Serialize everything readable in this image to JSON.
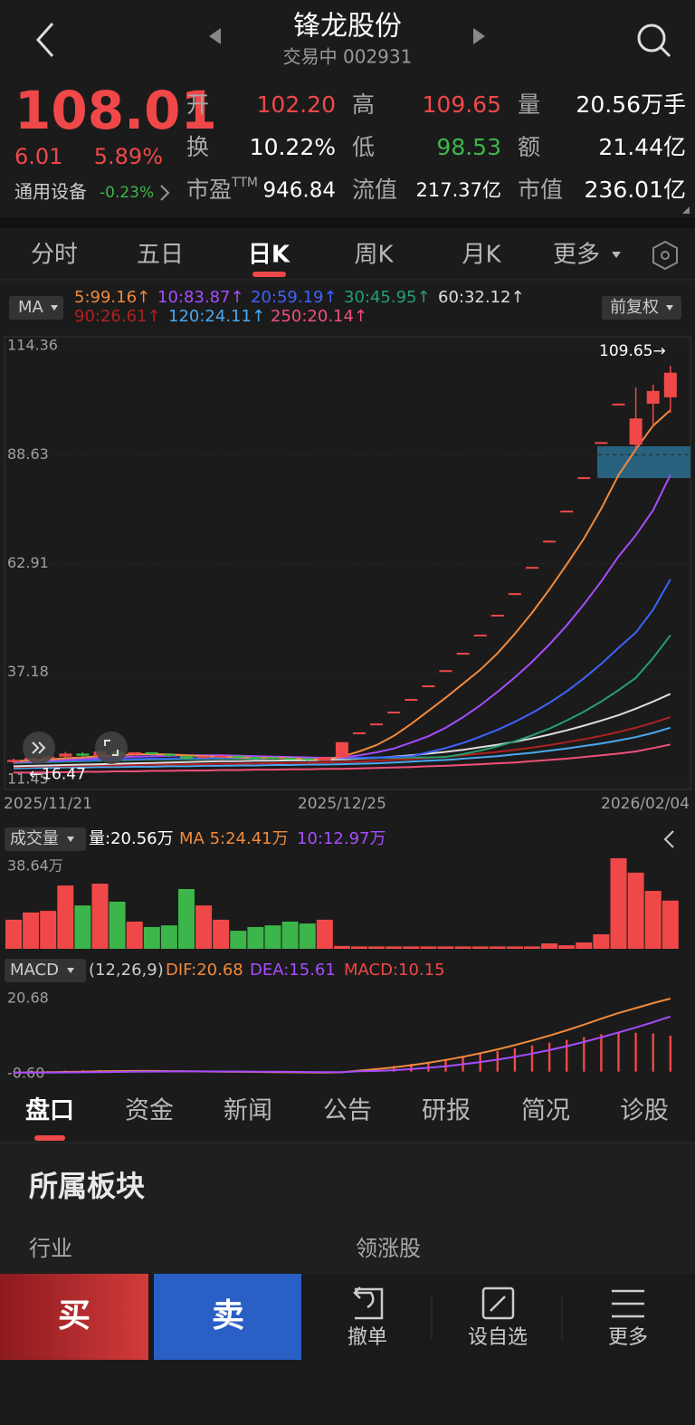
{
  "header": {
    "title": "锋龙股份",
    "status": "交易中 002931"
  },
  "quote": {
    "price": "108.01",
    "change": "6.01",
    "change_pct": "5.89%",
    "rows": [
      [
        {
          "label": "开",
          "value": "102.20"
        },
        {
          "label": "高",
          "value": "109.65"
        },
        {
          "label": "量",
          "value": "20.56万手"
        }
      ],
      [
        {
          "label": "换",
          "value": "10.22%"
        },
        {
          "label": "低",
          "value": "98.53"
        },
        {
          "label": "额",
          "value": "21.44亿"
        }
      ],
      [
        {
          "label": "市盈",
          "label_sup": "TTM",
          "value": "946.84"
        },
        {
          "label": "流值",
          "value": "217.37亿"
        },
        {
          "label": "市值",
          "value": "236.01亿"
        }
      ]
    ],
    "sector": "通用设备",
    "sector_change": "-0.23%"
  },
  "tabs": [
    "分时",
    "五日",
    "日K",
    "周K",
    "月K",
    "更多"
  ],
  "chart_data": [
    {
      "type": "candlestick",
      "selector": "MA",
      "adjust": "前复权",
      "up_color": "#f04848",
      "down_color": "#3cb64a",
      "categories": [
        "2025/11/21",
        null,
        null,
        null,
        null,
        null,
        null,
        null,
        null,
        null,
        null,
        null,
        null,
        null,
        null,
        null,
        null,
        null,
        null,
        "2025/12/25",
        null,
        null,
        null,
        null,
        null,
        null,
        null,
        null,
        null,
        null,
        null,
        null,
        null,
        null,
        null,
        null,
        null,
        null,
        "2026/02/04"
      ],
      "open": [
        16.0,
        16.5,
        16.8,
        17.3,
        18.0,
        17.5,
        18.5,
        17.9,
        18.1,
        17.7,
        17.4,
        16.8,
        17.2,
        17.3,
        17.0,
        16.9,
        16.8,
        16.7,
        16.3,
        17.1,
        22.8,
        24.9,
        27.7,
        30.7,
        33.9,
        37.5,
        41.6,
        45.9,
        50.6,
        55.7,
        61.9,
        68.1,
        75.2,
        83.1,
        91.4,
        100.5,
        91.0,
        100.7,
        102.2
      ],
      "high": [
        16.8,
        17.0,
        17.6,
        18.4,
        18.3,
        18.8,
        18.6,
        18.3,
        18.2,
        17.9,
        17.5,
        17.4,
        17.5,
        17.4,
        17.2,
        17.1,
        17.0,
        16.9,
        17.3,
        20.7,
        22.8,
        24.9,
        27.7,
        30.7,
        33.9,
        37.5,
        41.6,
        45.9,
        50.6,
        55.7,
        61.9,
        68.1,
        75.2,
        83.1,
        91.4,
        100.5,
        104.5,
        105.2,
        109.65
      ],
      "low": [
        15.6,
        16.47,
        16.6,
        17.0,
        17.2,
        17.3,
        17.6,
        17.6,
        17.5,
        17.2,
        16.6,
        16.7,
        16.9,
        16.9,
        16.7,
        16.6,
        16.5,
        16.2,
        16.2,
        17.1,
        22.8,
        24.9,
        27.7,
        30.7,
        33.9,
        37.5,
        41.6,
        45.9,
        50.6,
        55.7,
        61.9,
        68.1,
        75.2,
        83.1,
        91.4,
        100.5,
        90.0,
        95.5,
        98.53
      ],
      "close": [
        16.5,
        16.8,
        17.3,
        18.0,
        17.5,
        18.5,
        17.9,
        18.1,
        17.7,
        17.4,
        16.8,
        17.2,
        17.3,
        17.0,
        16.9,
        16.8,
        16.7,
        16.3,
        17.1,
        20.7,
        22.8,
        24.9,
        27.7,
        30.7,
        33.9,
        37.5,
        41.6,
        45.9,
        50.6,
        55.7,
        61.9,
        68.1,
        75.2,
        83.1,
        91.4,
        100.5,
        97.2,
        103.7,
        108.01
      ],
      "series": [
        {
          "name": "5:99.16↑",
          "color": "#f08a3c",
          "values": [
            16.2,
            16.4,
            16.6,
            16.9,
            17.1,
            17.4,
            17.6,
            17.8,
            17.9,
            17.8,
            17.6,
            17.4,
            17.3,
            17.1,
            17.0,
            17.0,
            16.9,
            16.7,
            16.6,
            17.3,
            18.5,
            20.0,
            22.2,
            25.0,
            28.1,
            31.2,
            34.5,
            37.8,
            41.7,
            46.3,
            51.3,
            56.8,
            62.7,
            68.8,
            75.9,
            83.8,
            89.9,
            95.5,
            99.16
          ]
        },
        {
          "name": "10:83.87↑",
          "color": "#a64dff",
          "values": [
            16.0,
            16.1,
            16.3,
            16.5,
            16.7,
            16.9,
            17.1,
            17.3,
            17.4,
            17.5,
            17.6,
            17.6,
            17.6,
            17.5,
            17.4,
            17.3,
            17.2,
            17.1,
            17.0,
            17.0,
            17.6,
            18.3,
            19.2,
            20.6,
            22.1,
            24.1,
            26.6,
            29.4,
            32.6,
            36.0,
            39.7,
            43.8,
            48.3,
            53.3,
            58.7,
            64.6,
            69.6,
            75.5,
            83.87
          ]
        },
        {
          "name": "20:59.19↑",
          "color": "#3e63ff",
          "values": [
            16.0,
            16.1,
            16.2,
            16.3,
            16.4,
            16.5,
            16.6,
            16.7,
            16.8,
            16.8,
            16.9,
            16.9,
            17.0,
            17.0,
            17.0,
            17.0,
            17.0,
            17.0,
            17.0,
            17.0,
            17.0,
            17.1,
            17.2,
            17.4,
            18.3,
            19.3,
            20.5,
            22.0,
            23.6,
            25.5,
            27.6,
            30.0,
            32.7,
            35.8,
            39.2,
            43.0,
            46.6,
            52.0,
            59.19
          ]
        },
        {
          "name": "30:45.95↑",
          "color": "#25a070",
          "values": [
            15.8,
            15.9,
            16.0,
            16.1,
            16.2,
            16.3,
            16.4,
            16.5,
            16.6,
            16.6,
            16.7,
            16.7,
            16.8,
            16.8,
            16.8,
            16.9,
            16.9,
            16.9,
            16.9,
            16.9,
            16.9,
            17.0,
            17.0,
            17.1,
            17.1,
            17.2,
            17.9,
            18.7,
            19.7,
            20.9,
            22.3,
            23.9,
            25.8,
            27.9,
            30.3,
            33.0,
            35.9,
            40.6,
            45.95
          ]
        },
        {
          "name": "60:32.12↑",
          "color": "#dddddd",
          "values": [
            15.0,
            15.1,
            15.2,
            15.3,
            15.4,
            15.5,
            15.6,
            15.7,
            15.8,
            15.9,
            16.0,
            16.1,
            16.2,
            16.2,
            16.3,
            16.3,
            16.4,
            16.4,
            16.5,
            16.6,
            16.8,
            17.0,
            17.3,
            17.6,
            18.0,
            18.4,
            18.9,
            19.5,
            20.1,
            20.8,
            21.6,
            22.5,
            23.5,
            24.6,
            25.8,
            27.1,
            28.6,
            30.3,
            32.12
          ]
        },
        {
          "name": "90:26.61↑",
          "color": "#b02020",
          "values": [
            14.8,
            14.9,
            15.0,
            15.0,
            15.1,
            15.2,
            15.2,
            15.3,
            15.4,
            15.4,
            15.5,
            15.5,
            15.6,
            15.6,
            15.7,
            15.7,
            15.8,
            15.8,
            15.9,
            16.0,
            16.1,
            16.3,
            16.5,
            16.7,
            17.0,
            17.3,
            17.6,
            18.0,
            18.4,
            18.9,
            19.4,
            20.0,
            20.7,
            21.4,
            22.2,
            23.1,
            24.1,
            25.3,
            26.61
          ]
        },
        {
          "name": "120:24.11↑",
          "color": "#4aa8f0",
          "values": [
            14.5,
            14.6,
            14.6,
            14.7,
            14.7,
            14.8,
            14.8,
            14.9,
            14.9,
            15.0,
            15.0,
            15.1,
            15.1,
            15.2,
            15.2,
            15.3,
            15.3,
            15.4,
            15.4,
            15.5,
            15.6,
            15.7,
            15.9,
            16.1,
            16.3,
            16.5,
            16.8,
            17.1,
            17.4,
            17.8,
            18.2,
            18.7,
            19.2,
            19.8,
            20.4,
            21.1,
            21.9,
            22.9,
            24.11
          ]
        },
        {
          "name": "250:20.14↑",
          "color": "#f0507a",
          "values": [
            13.5,
            13.5,
            13.6,
            13.6,
            13.7,
            13.7,
            13.8,
            13.8,
            13.9,
            13.9,
            14.0,
            14.0,
            14.1,
            14.1,
            14.2,
            14.2,
            14.3,
            14.3,
            14.4,
            14.4,
            14.5,
            14.6,
            14.7,
            14.8,
            15.0,
            15.1,
            15.3,
            15.5,
            15.7,
            15.9,
            16.2,
            16.5,
            16.8,
            17.2,
            17.6,
            18.0,
            18.5,
            19.3,
            20.14
          ]
        }
      ],
      "ylim": [
        11.45,
        114.36
      ],
      "yticks": [
        114.36,
        88.63,
        62.91,
        37.18,
        11.45
      ],
      "grid": true,
      "max_marker": {
        "value": 109.65,
        "label": "109.65→"
      },
      "min_marker": {
        "value": 16.47,
        "label": "←16.47"
      }
    },
    {
      "type": "bar",
      "title": "成交量",
      "header_items": [
        {
          "text": "量:20.56万",
          "color": "#ffffff"
        },
        {
          "text": "MA 5:24.41万",
          "color": "#f08a3c"
        },
        {
          "text": "10:12.97万",
          "color": "#a64dff"
        }
      ],
      "values": [
        12.4,
        15.5,
        16.2,
        27,
        18.5,
        27.8,
        20.1,
        11.6,
        9.3,
        10,
        25.5,
        18.5,
        12.4,
        7.7,
        9.3,
        10,
        11.6,
        10.8,
        12.4,
        1.2,
        1.0,
        1.0,
        1.0,
        1.0,
        1.0,
        1.0,
        1.0,
        1.0,
        1.0,
        1.0,
        1.0,
        2.3,
        1.5,
        2.7,
        6.2,
        38.64,
        32.5,
        24.7,
        20.56
      ],
      "ylim": [
        0,
        38.64
      ],
      "yticks": [
        {
          "value": 38.64,
          "label": "38.64万"
        }
      ]
    },
    {
      "type": "macd",
      "title": "MACD",
      "params": "(12,26,9)",
      "series": [
        {
          "name": "DIF:20.68",
          "color": "#f08a3c",
          "kind": "line",
          "values": [
            -0.3,
            -0.25,
            -0.2,
            -0.1,
            0.0,
            0.1,
            0.15,
            0.2,
            0.2,
            0.15,
            0.1,
            0.05,
            0.0,
            -0.05,
            -0.1,
            -0.15,
            -0.2,
            -0.25,
            -0.3,
            -0.2,
            0.3,
            0.7,
            1.2,
            1.8,
            2.5,
            3.3,
            4.2,
            5.2,
            6.3,
            7.5,
            8.8,
            10.2,
            11.7,
            13.3,
            15.0,
            16.6,
            18.0,
            19.4,
            20.68
          ]
        },
        {
          "name": "DEA:15.61",
          "color": "#a64dff",
          "kind": "line",
          "values": [
            -0.3,
            -0.29,
            -0.27,
            -0.24,
            -0.19,
            -0.13,
            -0.08,
            -0.02,
            0.02,
            0.05,
            0.06,
            0.06,
            0.05,
            0.03,
            0.0,
            -0.03,
            -0.07,
            -0.11,
            -0.15,
            -0.16,
            0.1,
            0.2,
            0.4,
            0.7,
            1.1,
            1.5,
            2.1,
            2.7,
            3.4,
            4.2,
            5.1,
            6.1,
            7.2,
            8.4,
            9.7,
            11.1,
            12.5,
            14.0,
            15.61
          ]
        },
        {
          "name": "MACD:10.15",
          "color": "#f04848",
          "kind": "bar",
          "values": [
            0.0,
            0.08,
            0.14,
            0.28,
            0.38,
            0.46,
            0.46,
            0.44,
            0.36,
            0.2,
            0.08,
            -0.02,
            -0.1,
            -0.16,
            -0.2,
            -0.24,
            -0.26,
            -0.28,
            -0.3,
            -0.08,
            0.4,
            1.0,
            1.6,
            2.2,
            2.8,
            3.6,
            4.2,
            5.0,
            5.8,
            6.6,
            7.4,
            8.2,
            9.0,
            9.8,
            10.6,
            11.0,
            11.0,
            10.8,
            10.15
          ]
        }
      ],
      "ylim": [
        -0.6,
        20.68
      ],
      "yticks": [
        20.68,
        {
          "value": -0.6,
          "label": "-0.60"
        }
      ]
    }
  ],
  "detail_tabs": [
    "盘口",
    "资金",
    "新闻",
    "公告",
    "研报",
    "简况",
    "诊股"
  ],
  "section": {
    "title": "所属板块",
    "col1": "行业",
    "col2": "领涨股"
  },
  "actions": {
    "buy": "买",
    "sell": "卖",
    "cancel": "撤单",
    "watch": "设自选",
    "more": "更多"
  }
}
